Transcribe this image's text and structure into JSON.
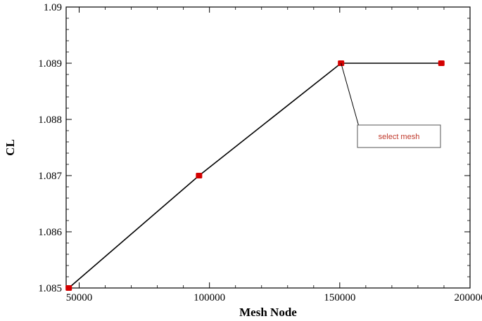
{
  "chart_data": {
    "type": "line",
    "title": "",
    "xlabel": "Mesh Node",
    "ylabel": "CL",
    "xlim": [
      45000,
      200000
    ],
    "ylim": [
      1.085,
      1.09
    ],
    "x_ticks": [
      50000,
      100000,
      150000,
      200000
    ],
    "x_tick_labels": [
      "50000",
      "100000",
      "150000",
      "200000"
    ],
    "y_ticks": [
      1.085,
      1.086,
      1.087,
      1.088,
      1.089,
      1.09
    ],
    "y_tick_labels": [
      "1.085",
      "1.086",
      "1.087",
      "1.088",
      "1.089",
      "1.09"
    ],
    "grid": false,
    "series": [
      {
        "x": [
          46000,
          96000,
          150500,
          189000
        ],
        "y": [
          1.085,
          1.087,
          1.089,
          1.089
        ],
        "line_color": "#000000",
        "marker_color": "#d40000"
      }
    ],
    "annotations": [
      {
        "text": "select mesh",
        "points_to": {
          "x": 150500,
          "y": 1.089
        },
        "text_color": "#c0392b"
      }
    ]
  }
}
